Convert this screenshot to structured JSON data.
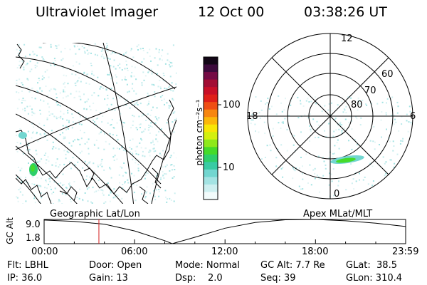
{
  "header": {
    "instrument": "Ultraviolet Imager",
    "date": "12 Oct 00",
    "time": "03:38:26 UT"
  },
  "colorbar": {
    "unit_label": "photon cm⁻²s⁻¹",
    "ticks": [
      "100",
      "10"
    ],
    "colors": [
      "#f2fbfb",
      "#cdeff0",
      "#a3e3e3",
      "#72d6d0",
      "#39cba4",
      "#2ecf6a",
      "#45db2a",
      "#8ee91a",
      "#d3f00e",
      "#f8e606",
      "#fbb70a",
      "#f7860f",
      "#ef4e14",
      "#df1f19",
      "#c80f27",
      "#a20d34",
      "#750b45",
      "#3c0a3c",
      "#120616"
    ]
  },
  "panels": {
    "geographic_label": "Geographic Lat/Lon",
    "apex_label": "Apex MLat/MLT",
    "polar": {
      "mlt_labels": [
        "12",
        "18",
        "6",
        "0"
      ],
      "mlat_labels": [
        "60",
        "70",
        "80"
      ]
    }
  },
  "timeline": {
    "ylabel": "GC Alt",
    "ytick_top": "9.0",
    "ytick_bottom": "1.8",
    "xticks": [
      "00:00",
      "06:00",
      "12:00",
      "18:00",
      "23:59"
    ],
    "marker_color": "#d42020"
  },
  "chart_data": {
    "type": "line",
    "title": "",
    "xlabel": "",
    "ylabel": "GC Alt",
    "x": [
      "00:00",
      "02:00",
      "04:00",
      "06:00",
      "08:00",
      "08:30",
      "10:00",
      "12:00",
      "14:00",
      "16:00",
      "18:00",
      "20:00",
      "22:00",
      "23:59"
    ],
    "series": [
      {
        "values": [
          8.8,
          8.4,
          7.6,
          5.6,
          2.7,
          1.8,
          3.7,
          6.4,
          8.1,
          8.9,
          9.0,
          8.6,
          7.9,
          6.9
        ]
      }
    ],
    "ylim": [
      1.8,
      9.0
    ],
    "current_time": "03:38"
  },
  "info": {
    "flt": "Flt: LBHL",
    "door": "Door: Open",
    "mode": "Mode: Normal",
    "gc_alt": "GC Alt: 7.7 Re",
    "glat": "GLat:  38.5",
    "ip": "IP: 36.0",
    "gain": "Gain: 13",
    "dsp": "Dsp:    2.0",
    "seq": "Seq: 39",
    "glon": "GLon: 310.4"
  }
}
